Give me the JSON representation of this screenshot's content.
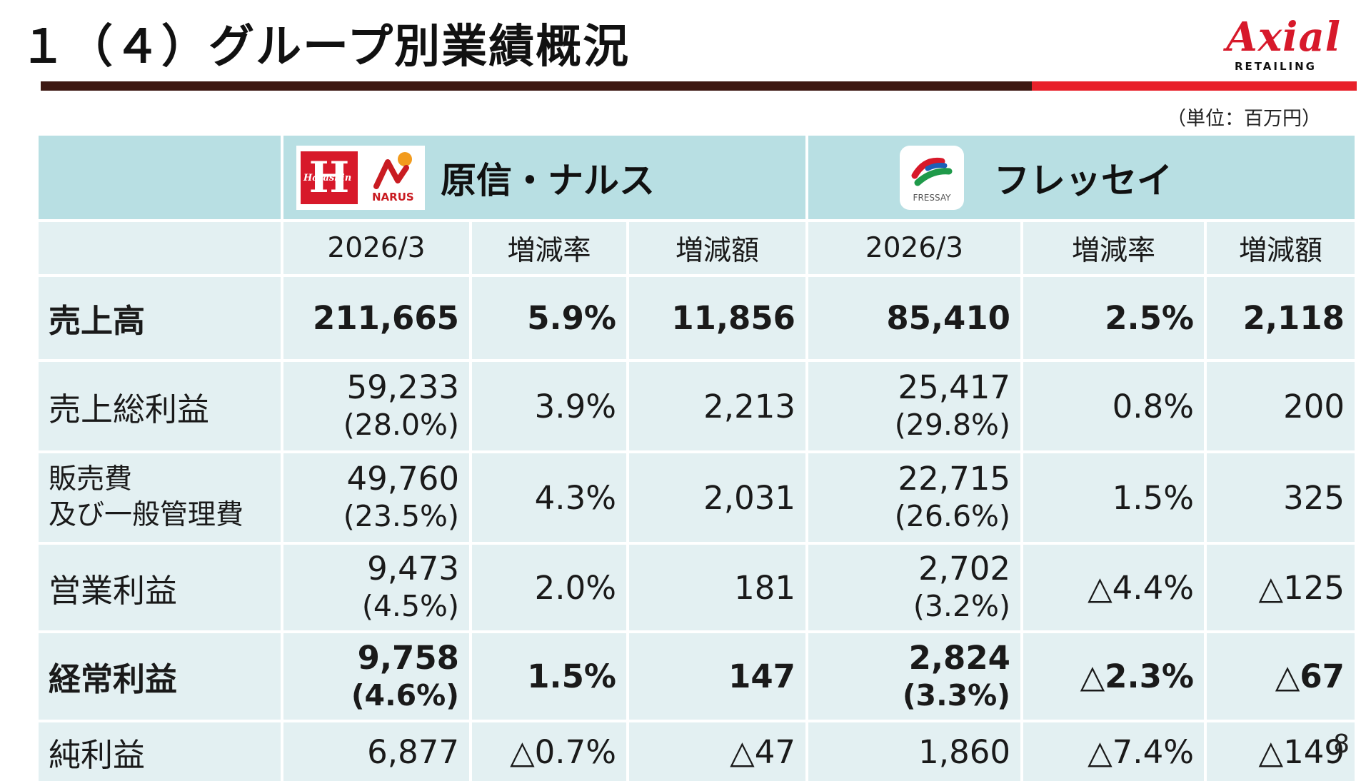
{
  "title": "１（４）グループ別業績概況",
  "logo": {
    "brand": "Axial",
    "sub": "RETAILING"
  },
  "unit": "（単位：百万円）",
  "page_number": "8",
  "groups": [
    {
      "name": "原信・ナルス",
      "logo_h": "H",
      "logo_h_sub": "Harashin",
      "logo_n": "NARUS"
    },
    {
      "name": "フレッセイ",
      "logo_text": "FRESSAY"
    }
  ],
  "columns": [
    "2026/3",
    "増減率",
    "増減額",
    "2026/3",
    "増減率",
    "増減額"
  ],
  "rows": [
    {
      "label": "売上高",
      "bold": true,
      "hn": {
        "value": "211,665",
        "pct": "",
        "rate": "5.9%",
        "diff": "11,856"
      },
      "fr": {
        "value": "85,410",
        "pct": "",
        "rate": "2.5%",
        "diff": "2,118"
      }
    },
    {
      "label": "売上総利益",
      "bold": false,
      "hn": {
        "value": "59,233",
        "pct": "(28.0%)",
        "rate": "3.9%",
        "diff": "2,213"
      },
      "fr": {
        "value": "25,417",
        "pct": "(29.8%)",
        "rate": "0.8%",
        "diff": "200"
      }
    },
    {
      "label_line1": "販売費",
      "label_line2": "及び一般管理費",
      "bold": false,
      "hn": {
        "value": "49,760",
        "pct": "(23.5%)",
        "rate": "4.3%",
        "diff": "2,031"
      },
      "fr": {
        "value": "22,715",
        "pct": "(26.6%)",
        "rate": "1.5%",
        "diff": "325"
      }
    },
    {
      "label": "営業利益",
      "bold": false,
      "hn": {
        "value": "9,473",
        "pct": "(4.5%)",
        "rate": "2.0%",
        "diff": "181"
      },
      "fr": {
        "value": "2,702",
        "pct": "(3.2%)",
        "rate": "△4.4%",
        "diff": "△125"
      }
    },
    {
      "label": "経常利益",
      "bold": true,
      "hn": {
        "value": "9,758",
        "pct": "(4.6%)",
        "rate": "1.5%",
        "diff": "147"
      },
      "fr": {
        "value": "2,824",
        "pct": "(3.3%)",
        "rate": "△2.3%",
        "diff": "△67"
      }
    },
    {
      "label": "純利益",
      "bold": false,
      "hn": {
        "value": "6,877",
        "pct": "",
        "rate": "△0.7%",
        "diff": "△47"
      },
      "fr": {
        "value": "1,860",
        "pct": "",
        "rate": "△7.4%",
        "diff": "△149"
      }
    }
  ],
  "colors": {
    "header_bg": "#b8dfe3",
    "cell_bg": "#e3f0f2",
    "accent_red": "#e8202a",
    "rule_dark": "#3d1812"
  }
}
